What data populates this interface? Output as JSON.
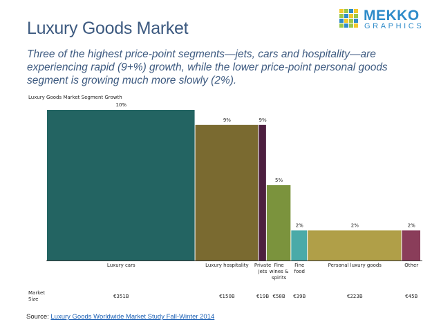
{
  "header": {
    "title": "Luxury Goods Market",
    "subtitle": "Three of the highest price-point segments—jets, cars and hospitality—are experiencing rapid (9+%) growth, while the lower price-point personal goods segment is growing much more slowly (2%)."
  },
  "logo": {
    "word1": "MEKKO",
    "word2": "GRAPHICS",
    "color": "#2e8bc9"
  },
  "row_label": "Market\nSize",
  "source": {
    "prefix": "Source: ",
    "link_text": "Luxury Goods Worldwide Market Study Fall-Winter 2014"
  },
  "chart_data": {
    "type": "bar",
    "variant": "variable-width (mekko)",
    "title": "Luxury Goods Market Segment Growth",
    "ylabel": "",
    "xlabel": "",
    "ylim": [
      0,
      10
    ],
    "grid": false,
    "legend": "none",
    "categories": [
      "Luxury cars",
      "Luxury hospitality",
      "Private\njets",
      "Fine\nwines &\nspirits",
      "Fine\nfood",
      "Personal luxury goods",
      "Other"
    ],
    "growth_pct": [
      10,
      9,
      9,
      5,
      2,
      2,
      2
    ],
    "growth_labels": [
      "10%",
      "9%",
      "9%",
      "5%",
      "2%",
      "2%",
      "2%"
    ],
    "market_size_billion_eur": [
      351,
      150,
      19,
      58,
      39,
      223,
      45
    ],
    "market_size_labels": [
      "€351B",
      "€150B",
      "€19B",
      "€58B",
      "€39B",
      "€223B",
      "€45B"
    ],
    "colors": [
      "#236462",
      "#7a6a30",
      "#4d1f3f",
      "#7b933d",
      "#4aaaa8",
      "#b09f48",
      "#8a3d5a"
    ]
  }
}
